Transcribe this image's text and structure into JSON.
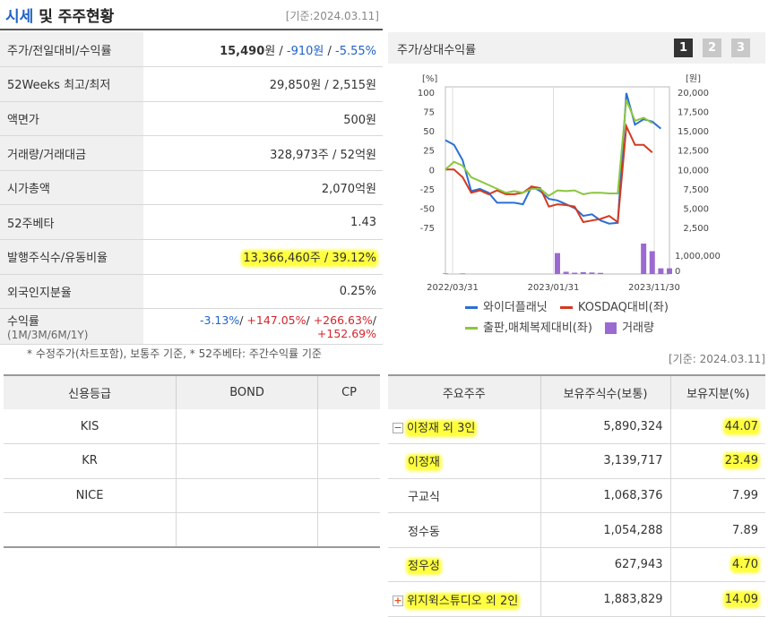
{
  "header": {
    "title_accent": "시세",
    "title_rest": " 및 주주현황",
    "date": "[기준:2024.03.11]"
  },
  "info": {
    "rows": [
      {
        "label": "주가/전일대비/수익률"
      },
      {
        "label": "52Weeks 최고/최저",
        "value": "29,850원 / 2,515원"
      },
      {
        "label": "액면가",
        "value": "500원"
      },
      {
        "label": "거래량/거래대금",
        "value": "328,973주 / 52억원"
      },
      {
        "label": "시가총액",
        "value": "2,070억원"
      },
      {
        "label": "52주베타",
        "value": "1.43"
      },
      {
        "label": "발행주식수/유동비율",
        "value": "13,366,460주 / 39.12%"
      },
      {
        "label": "외국인지분율",
        "value": "0.25%"
      },
      {
        "label": "수익률",
        "sub": "(1M/3M/6M/1Y)"
      }
    ],
    "price": {
      "price": "15,490",
      "won": "원",
      "sep1": " / ",
      "change": "-910원",
      "sep2": " / ",
      "rate": "-5.55%"
    },
    "returns": {
      "r1m": "-3.13%",
      "s1": "/ ",
      "r3m": "+147.05%",
      "s2": "/ ",
      "r6m": "+266.63%",
      "s3": "/ ",
      "r1y": "+152.69%"
    },
    "note": "* 수정주가(차트포함), 보통주 기준, * 52주베타: 주간수익률 기준"
  },
  "chart_panel": {
    "title": "주가/상대수익률",
    "pages": [
      "1",
      "2",
      "3"
    ],
    "active_page": "1"
  },
  "chart_data": {
    "type": "line",
    "left_unit": "[%]",
    "right_unit": "[원]",
    "left_ticks": [
      "100",
      "75",
      "50",
      "25",
      "0",
      "-25",
      "-50",
      "-75"
    ],
    "right_ticks": [
      "20,000",
      "17,500",
      "15,000",
      "12,500",
      "10,000",
      "7,500",
      "5,000",
      "2,500"
    ],
    "volume_ticks": [
      "1,000,000",
      "0"
    ],
    "x_ticks": [
      "2022/03/31",
      "2023/01/31",
      "2023/11/30"
    ],
    "ylim": [
      -75,
      100
    ],
    "x": [
      0,
      1,
      2,
      3,
      4,
      5,
      6,
      7,
      8,
      9,
      10,
      11,
      12,
      13,
      14,
      15,
      16,
      17,
      18,
      19,
      20,
      21,
      22,
      23,
      24,
      25,
      26
    ],
    "series": [
      {
        "name": "와이더플래닛",
        "color": "#2a6fd6",
        "values": [
          38,
          32,
          12,
          -28,
          -25,
          -30,
          -43,
          -43,
          -43,
          -45,
          -22,
          -28,
          -38,
          -40,
          -45,
          -50,
          -60,
          -58,
          -66,
          -70,
          -69,
          99,
          58,
          65,
          62,
          53,
          null
        ]
      },
      {
        "name": "KOSDAQ대비(좌)",
        "color": "#d33a20",
        "values": [
          0,
          0,
          -10,
          -30,
          -27,
          -32,
          -27,
          -32,
          -32,
          -30,
          -22,
          -24,
          -48,
          -45,
          -46,
          -48,
          -68,
          -66,
          -64,
          -60,
          -68,
          56,
          32,
          32,
          22,
          null,
          null
        ]
      },
      {
        "name": "출판,매체복제대비(좌)",
        "color": "#8cc63f",
        "values": [
          0,
          10,
          5,
          -10,
          -15,
          -20,
          -25,
          -30,
          -28,
          -30,
          -25,
          -25,
          -34,
          -27,
          -28,
          -27,
          -32,
          -30,
          -30,
          -31,
          -31,
          90,
          63,
          67,
          60,
          null,
          null
        ]
      }
    ],
    "volume": {
      "name": "거래량",
      "color": "#9b6ad1",
      "values": [
        30000,
        0,
        30000,
        0,
        0,
        0,
        0,
        0,
        0,
        0,
        0,
        0,
        0,
        1100000,
        120000,
        70000,
        100000,
        80000,
        60000,
        0,
        0,
        0,
        0,
        1600000,
        1200000,
        300000,
        300000
      ]
    },
    "volume_max": 1600000
  },
  "credit": {
    "headers": [
      "신용등급",
      "BOND",
      "CP"
    ],
    "rows": [
      [
        "KIS",
        "",
        ""
      ],
      [
        "KR",
        "",
        ""
      ],
      [
        "NICE",
        "",
        ""
      ],
      [
        "",
        "",
        ""
      ]
    ]
  },
  "shareholders": {
    "date": "[기준: 2024.03.11]",
    "headers": [
      "주요주주",
      "보유주식수(보통)",
      "보유지분(%)"
    ],
    "rows": [
      {
        "name": "이정재 외 3인",
        "shares": "5,890,324",
        "pct": "44.07",
        "toggle": "−"
      },
      {
        "name": "이정재",
        "shares": "3,139,717",
        "pct": "23.49"
      },
      {
        "name": "구교식",
        "shares": "1,068,376",
        "pct": "7.99"
      },
      {
        "name": "정수동",
        "shares": "1,054,288",
        "pct": "7.89"
      },
      {
        "name": "정우성",
        "shares": "627,943",
        "pct": "4.70"
      },
      {
        "name": "위지윅스튜디오 외 2인",
        "shares": "1,883,829",
        "pct": "14.09",
        "toggle": "+"
      }
    ]
  }
}
